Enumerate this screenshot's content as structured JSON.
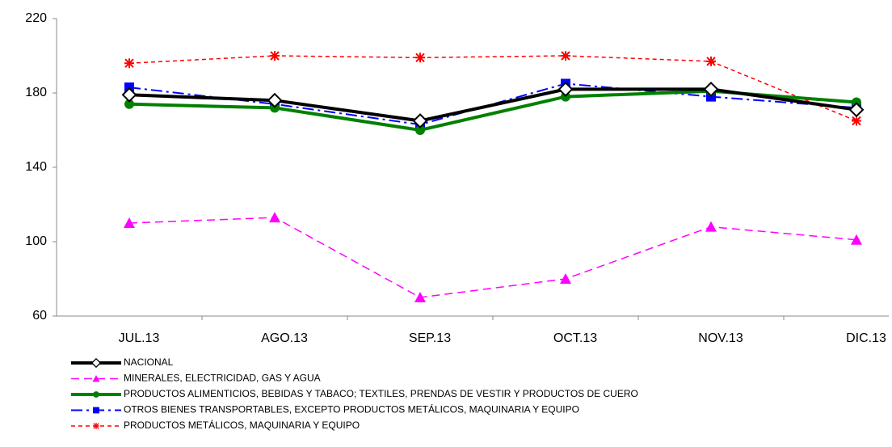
{
  "chart_data": {
    "type": "line",
    "categories": [
      "JUL.13",
      "AGO.13",
      "SEP.13",
      "OCT.13",
      "NOV.13",
      "DIC.13"
    ],
    "ylim": [
      60,
      220
    ],
    "yticks": [
      60,
      100,
      140,
      180,
      220
    ],
    "grid": false,
    "series": [
      {
        "name": "NACIONAL",
        "color": "#000000",
        "values": [
          179,
          176,
          165,
          182,
          182,
          171
        ]
      },
      {
        "name": "MINERALES, ELECTRICIDAD,  GAS Y AGUA",
        "color": "#ff00ff",
        "values": [
          110,
          113,
          70,
          80,
          108,
          101
        ]
      },
      {
        "name": "PRODUCTOS ALIMENTICIOS,  BEBIDAS Y TABACO; TEXTILES,  PRENDAS DE VESTIR Y PRODUCTOS  DE CUERO",
        "color": "#008000",
        "values": [
          174,
          172,
          160,
          178,
          181,
          175
        ]
      },
      {
        "name": "OTROS  BIENES TRANSPORTABLES,  EXCEPTO  PRODUCTOS  METÁLICOS, MAQUINARIA  Y EQUIPO",
        "color": "#0000ff",
        "values": [
          183,
          174,
          163,
          185,
          178,
          172
        ]
      },
      {
        "name": "PRODUCTOS  METÁLICOS,  MAQUINARIA  Y EQUIPO",
        "color": "#ff0000",
        "values": [
          196,
          200,
          199,
          200,
          197,
          165
        ]
      }
    ]
  }
}
